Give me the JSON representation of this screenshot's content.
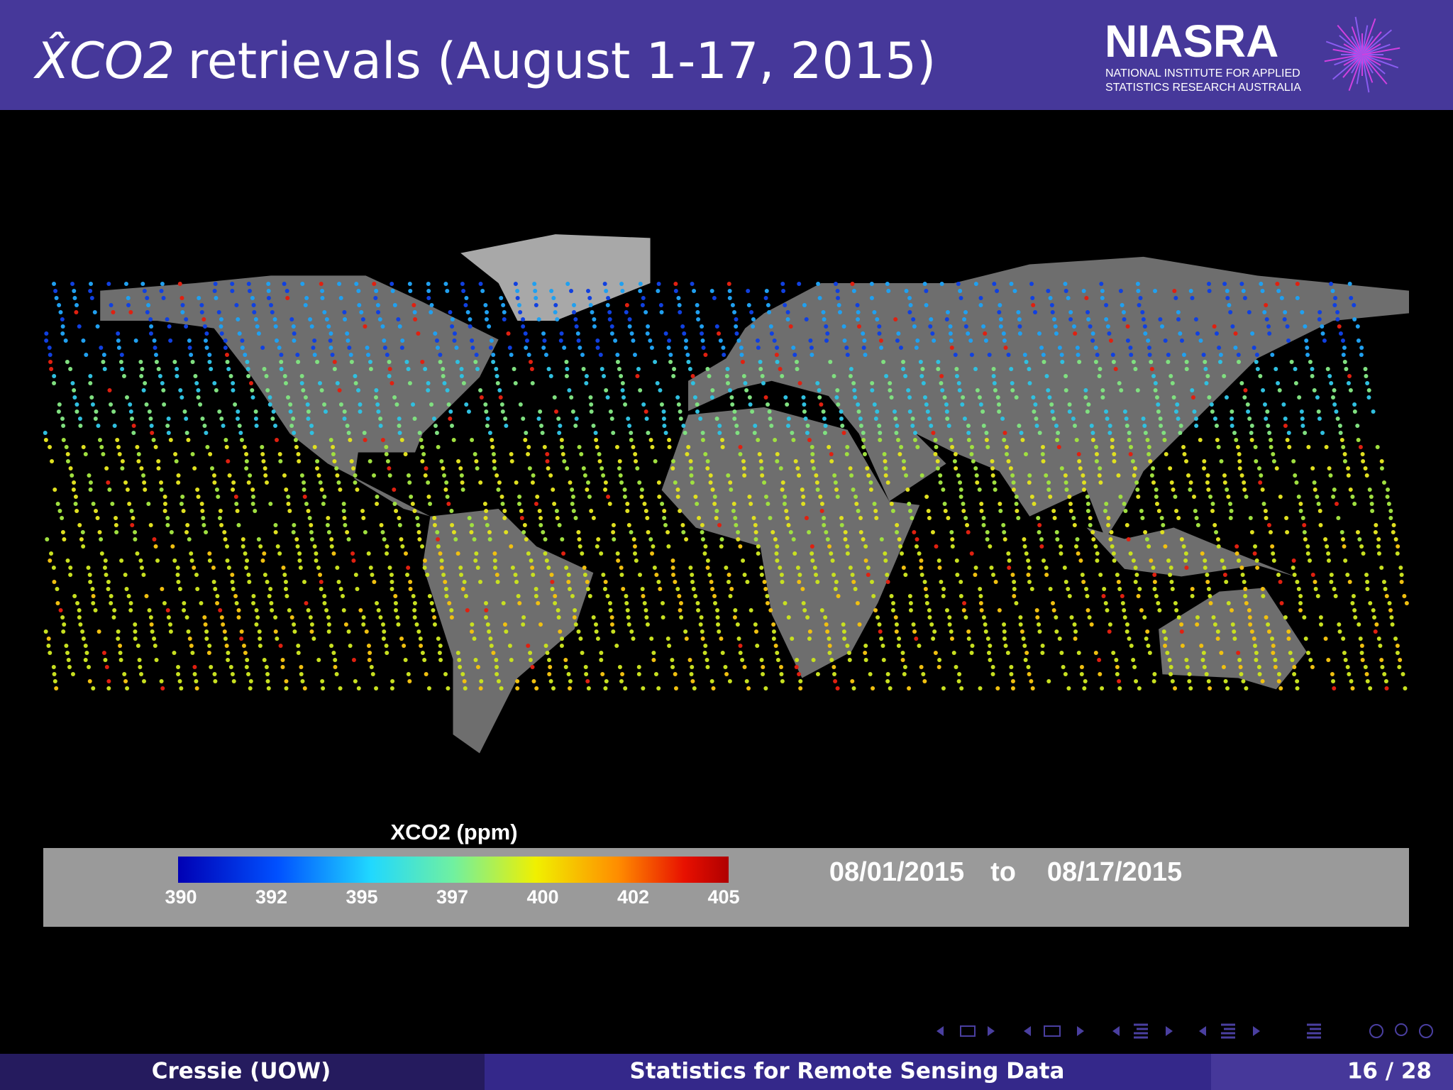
{
  "header": {
    "title_symbol": "X̂CO2",
    "title_text": "retrievals (August 1-17, 2015)",
    "logo": {
      "name": "NIASRA",
      "line1": "NATIONAL INSTITUTE FOR APPLIED",
      "line2": "STATISTICS RESEARCH AUSTRALIA"
    }
  },
  "figure": {
    "colorbar_title": "XCO2 (ppm)",
    "colorbar_labels": [
      390,
      392,
      395,
      397,
      400,
      402,
      405
    ],
    "date_start": "08/01/2015",
    "date_sep": "to",
    "date_end": "08/17/2015"
  },
  "footer": {
    "author": "Cressie (UOW)",
    "talk_title": "Statistics for Remote Sensing Data",
    "page": "16 / 28"
  }
}
